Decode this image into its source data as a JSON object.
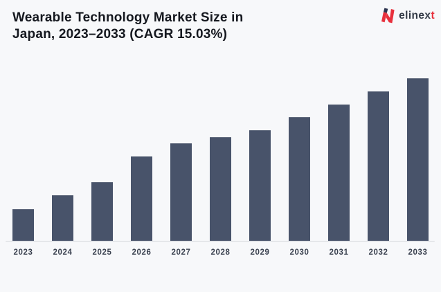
{
  "header": {
    "title_line1": "Wearable Technology Market Size in",
    "title_line2": "Japan, 2023–2033 (CAGR 15.03%)"
  },
  "logo": {
    "name": "elinext",
    "text_main": "elinex",
    "text_accent": "t"
  },
  "chart_data": {
    "type": "bar",
    "title": "Wearable Technology Market Size in Japan, 2023–2033 (CAGR 15.03%)",
    "subtitle_cagr": "CAGR 15.03%",
    "categories": [
      "2023",
      "2024",
      "2025",
      "2026",
      "2027",
      "2028",
      "2029",
      "2030",
      "2031",
      "2032",
      "2033"
    ],
    "values_relative": [
      19.7,
      28.2,
      36.0,
      51.9,
      59.8,
      64.0,
      67.9,
      76.0,
      83.9,
      92.0,
      100.0
    ],
    "value_note": "No y-axis, gridlines or data labels are shown in the image; values are measured bar heights relative to the 2033 bar = 100",
    "xlabel": "",
    "ylabel": "",
    "legend_position": "none",
    "grid": "off",
    "bar_color": "#48536a",
    "background_color": "#f7f8fa"
  },
  "theme": {
    "background": "#f7f8fa",
    "bar-color": "#48536a",
    "title-color": "#15181f",
    "label-color": "#3b4250",
    "axis-line-color": "#e5e7ea",
    "logo-red": "#e8303c",
    "logo-dark": "#333a46"
  }
}
